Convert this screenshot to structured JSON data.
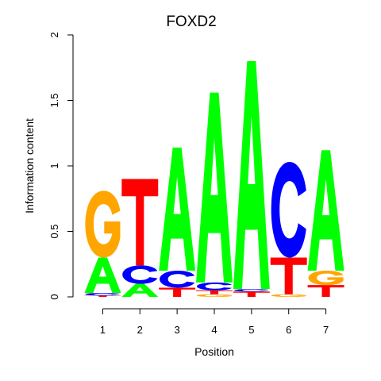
{
  "chart_data": {
    "type": "sequence-logo",
    "title": "FOXD2",
    "xlabel": "Position",
    "ylabel": "Information content",
    "ylim": [
      0,
      2
    ],
    "y_ticks": [
      "0",
      "0.5",
      "1",
      "1.5",
      "2"
    ],
    "y_tick_values": [
      0,
      0.5,
      1,
      1.5,
      2
    ],
    "positions": [
      "1",
      "2",
      "3",
      "4",
      "5",
      "6",
      "7"
    ],
    "letter_colors": {
      "A": "#00ff00",
      "C": "#0000ff",
      "G": "#ffa500",
      "T": "#ff0000"
    },
    "stacks": [
      [
        {
          "letter": "T",
          "value": 0.01
        },
        {
          "letter": "C",
          "value": 0.02
        },
        {
          "letter": "A",
          "value": 0.27
        },
        {
          "letter": "G",
          "value": 0.51
        }
      ],
      [
        {
          "letter": "A",
          "value": 0.1
        },
        {
          "letter": "C",
          "value": 0.14
        },
        {
          "letter": "T",
          "value": 0.66
        }
      ],
      [
        {
          "letter": "T",
          "value": 0.07
        },
        {
          "letter": "C",
          "value": 0.13
        },
        {
          "letter": "A",
          "value": 0.94
        }
      ],
      [
        {
          "letter": "G",
          "value": 0.02
        },
        {
          "letter": "T",
          "value": 0.03
        },
        {
          "letter": "C",
          "value": 0.06
        },
        {
          "letter": "A",
          "value": 1.45
        }
      ],
      [
        {
          "letter": "T",
          "value": 0.04
        },
        {
          "letter": "C",
          "value": 0.02
        },
        {
          "letter": "A",
          "value": 1.74
        }
      ],
      [
        {
          "letter": "G",
          "value": 0.02
        },
        {
          "letter": "T",
          "value": 0.28
        },
        {
          "letter": "C",
          "value": 0.73
        }
      ],
      [
        {
          "letter": "T",
          "value": 0.09
        },
        {
          "letter": "G",
          "value": 0.11
        },
        {
          "letter": "A",
          "value": 0.92
        }
      ]
    ]
  }
}
